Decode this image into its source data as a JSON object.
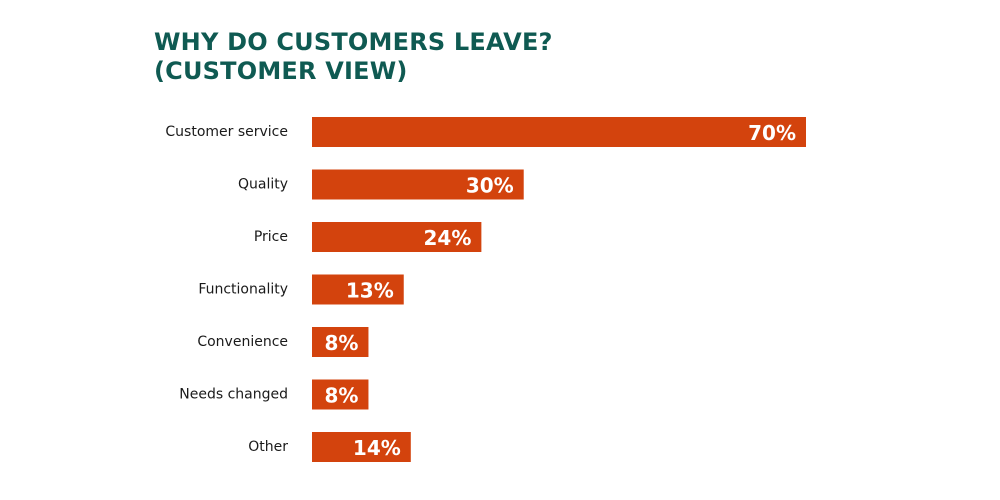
{
  "chart_data": {
    "type": "bar",
    "orientation": "horizontal",
    "title_lines": [
      "WHY DO CUSTOMERS LEAVE?",
      "(CUSTOMER VIEW)"
    ],
    "categories": [
      "Customer service",
      "Quality",
      "Price",
      "Functionality",
      "Convenience",
      "Needs changed",
      "Other"
    ],
    "values": [
      70,
      30,
      24,
      13,
      8,
      8,
      14
    ],
    "value_labels": [
      "70%",
      "30%",
      "24%",
      "13%",
      "8%",
      "8%",
      "14%"
    ],
    "unit": "%",
    "xlim": [
      0,
      70
    ],
    "grid": false,
    "legend": "none",
    "bar_color": "#d3430d",
    "title_color": "#0f5a52",
    "label_color": "#1a1a1a",
    "value_label_color": "#ffffff"
  }
}
